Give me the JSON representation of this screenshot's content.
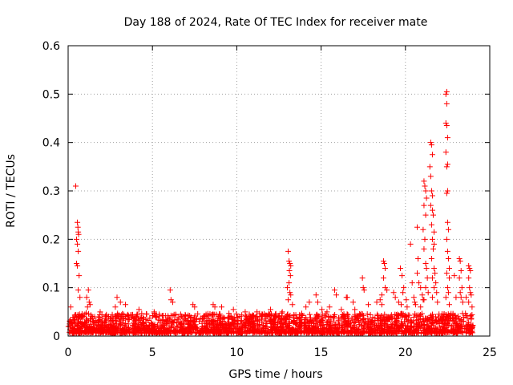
{
  "chart_data": {
    "type": "scatter",
    "title": "Day 188 of 2024, Rate Of TEC Index for receiver mate",
    "xlabel": "GPS time / hours",
    "ylabel": "ROTI / TECUs",
    "xlim": [
      0,
      25
    ],
    "ylim": [
      0,
      0.6
    ],
    "xticks": [
      0,
      5,
      10,
      15,
      20,
      25
    ],
    "xtick_labels": [
      "0",
      "5",
      "10",
      "15",
      "20",
      "25"
    ],
    "yticks": [
      0,
      0.1,
      0.2,
      0.3,
      0.4,
      0.5,
      0.6
    ],
    "ytick_labels": [
      "0",
      "0.1",
      "0.2",
      "0.3",
      "0.4",
      "0.5",
      "0.6"
    ],
    "grid": true,
    "marker": "+",
    "color": "#ff0000",
    "baseline": {
      "x_range": [
        0,
        24
      ],
      "y_range": [
        0.005,
        0.045
      ],
      "n_points": 2400
    },
    "series": [
      {
        "name": "ROTI",
        "points": [
          [
            0.45,
            0.31
          ],
          [
            0.55,
            0.235
          ],
          [
            0.58,
            0.225
          ],
          [
            0.6,
            0.215
          ],
          [
            0.62,
            0.21
          ],
          [
            0.5,
            0.2
          ],
          [
            0.55,
            0.19
          ],
          [
            0.6,
            0.175
          ],
          [
            0.5,
            0.15
          ],
          [
            0.55,
            0.145
          ],
          [
            0.65,
            0.125
          ],
          [
            0.6,
            0.095
          ],
          [
            0.7,
            0.08
          ],
          [
            1.2,
            0.095
          ],
          [
            1.1,
            0.08
          ],
          [
            1.25,
            0.07
          ],
          [
            1.3,
            0.065
          ],
          [
            1.15,
            0.06
          ],
          [
            2.9,
            0.08
          ],
          [
            3.1,
            0.07
          ],
          [
            2.8,
            0.06
          ],
          [
            3.4,
            0.065
          ],
          [
            6.05,
            0.095
          ],
          [
            6.1,
            0.075
          ],
          [
            6.2,
            0.07
          ],
          [
            7.4,
            0.065
          ],
          [
            7.5,
            0.06
          ],
          [
            8.6,
            0.065
          ],
          [
            8.7,
            0.06
          ],
          [
            9.1,
            0.06
          ],
          [
            11.2,
            0.05
          ],
          [
            12.0,
            0.055
          ],
          [
            13.05,
            0.175
          ],
          [
            13.1,
            0.155
          ],
          [
            13.15,
            0.15
          ],
          [
            13.2,
            0.145
          ],
          [
            13.12,
            0.135
          ],
          [
            13.18,
            0.125
          ],
          [
            13.1,
            0.11
          ],
          [
            13.0,
            0.1
          ],
          [
            13.15,
            0.09
          ],
          [
            13.2,
            0.085
          ],
          [
            13.05,
            0.075
          ],
          [
            13.3,
            0.065
          ],
          [
            14.3,
            0.07
          ],
          [
            14.1,
            0.06
          ],
          [
            14.7,
            0.085
          ],
          [
            14.8,
            0.07
          ],
          [
            15.05,
            0.055
          ],
          [
            15.35,
            0.05
          ],
          [
            15.5,
            0.06
          ],
          [
            15.8,
            0.095
          ],
          [
            15.9,
            0.085
          ],
          [
            16.2,
            0.055
          ],
          [
            16.5,
            0.08
          ],
          [
            16.55,
            0.08
          ],
          [
            16.9,
            0.07
          ],
          [
            17.0,
            0.055
          ],
          [
            17.45,
            0.12
          ],
          [
            17.5,
            0.1
          ],
          [
            17.55,
            0.095
          ],
          [
            17.8,
            0.065
          ],
          [
            18.3,
            0.07
          ],
          [
            18.6,
            0.065
          ],
          [
            18.7,
            0.155
          ],
          [
            18.75,
            0.15
          ],
          [
            18.8,
            0.14
          ],
          [
            18.7,
            0.12
          ],
          [
            18.8,
            0.1
          ],
          [
            18.9,
            0.095
          ],
          [
            18.6,
            0.085
          ],
          [
            18.5,
            0.075
          ],
          [
            19.3,
            0.09
          ],
          [
            19.4,
            0.08
          ],
          [
            19.6,
            0.07
          ],
          [
            19.7,
            0.14
          ],
          [
            19.8,
            0.125
          ],
          [
            19.9,
            0.1
          ],
          [
            19.85,
            0.09
          ],
          [
            19.75,
            0.065
          ],
          [
            20.05,
            0.075
          ],
          [
            20.1,
            0.06
          ],
          [
            20.3,
            0.19
          ],
          [
            20.4,
            0.11
          ],
          [
            20.5,
            0.08
          ],
          [
            20.55,
            0.07
          ],
          [
            20.6,
            0.065
          ],
          [
            20.7,
            0.225
          ],
          [
            20.75,
            0.16
          ],
          [
            20.7,
            0.13
          ],
          [
            20.8,
            0.11
          ],
          [
            20.9,
            0.1
          ],
          [
            21.0,
            0.085
          ],
          [
            21.05,
            0.075
          ],
          [
            20.9,
            0.06
          ],
          [
            21.1,
            0.32
          ],
          [
            21.15,
            0.31
          ],
          [
            21.2,
            0.3
          ],
          [
            21.25,
            0.285
          ],
          [
            21.1,
            0.27
          ],
          [
            21.2,
            0.25
          ],
          [
            21.05,
            0.22
          ],
          [
            21.15,
            0.2
          ],
          [
            21.1,
            0.18
          ],
          [
            21.2,
            0.15
          ],
          [
            21.25,
            0.14
          ],
          [
            21.3,
            0.12
          ],
          [
            21.2,
            0.1
          ],
          [
            21.35,
            0.09
          ],
          [
            21.1,
            0.075
          ],
          [
            21.5,
            0.4
          ],
          [
            21.55,
            0.395
          ],
          [
            21.6,
            0.375
          ],
          [
            21.45,
            0.35
          ],
          [
            21.5,
            0.33
          ],
          [
            21.55,
            0.3
          ],
          [
            21.6,
            0.29
          ],
          [
            21.5,
            0.27
          ],
          [
            21.6,
            0.26
          ],
          [
            21.65,
            0.25
          ],
          [
            21.55,
            0.23
          ],
          [
            21.7,
            0.215
          ],
          [
            21.6,
            0.2
          ],
          [
            21.7,
            0.19
          ],
          [
            21.65,
            0.18
          ],
          [
            21.55,
            0.16
          ],
          [
            21.7,
            0.14
          ],
          [
            21.75,
            0.13
          ],
          [
            21.6,
            0.12
          ],
          [
            21.8,
            0.11
          ],
          [
            21.7,
            0.1
          ],
          [
            21.85,
            0.09
          ],
          [
            21.6,
            0.08
          ],
          [
            21.9,
            0.07
          ],
          [
            22.4,
            0.5
          ],
          [
            22.45,
            0.505
          ],
          [
            22.45,
            0.48
          ],
          [
            22.4,
            0.44
          ],
          [
            22.45,
            0.435
          ],
          [
            22.5,
            0.41
          ],
          [
            22.4,
            0.38
          ],
          [
            22.5,
            0.355
          ],
          [
            22.45,
            0.35
          ],
          [
            22.5,
            0.3
          ],
          [
            22.45,
            0.295
          ],
          [
            22.5,
            0.235
          ],
          [
            22.55,
            0.22
          ],
          [
            22.45,
            0.2
          ],
          [
            22.5,
            0.175
          ],
          [
            22.55,
            0.16
          ],
          [
            22.6,
            0.14
          ],
          [
            22.45,
            0.13
          ],
          [
            22.6,
            0.12
          ],
          [
            22.5,
            0.1
          ],
          [
            22.55,
            0.09
          ],
          [
            22.4,
            0.08
          ],
          [
            22.6,
            0.065
          ],
          [
            22.9,
            0.125
          ],
          [
            23.0,
            0.08
          ],
          [
            23.2,
            0.16
          ],
          [
            23.25,
            0.155
          ],
          [
            23.3,
            0.135
          ],
          [
            23.2,
            0.12
          ],
          [
            23.35,
            0.1
          ],
          [
            23.25,
            0.09
          ],
          [
            23.3,
            0.08
          ],
          [
            23.4,
            0.07
          ],
          [
            23.6,
            0.08
          ],
          [
            23.75,
            0.145
          ],
          [
            23.8,
            0.14
          ],
          [
            23.85,
            0.135
          ],
          [
            23.75,
            0.12
          ],
          [
            23.8,
            0.1
          ],
          [
            23.85,
            0.09
          ],
          [
            23.9,
            0.085
          ],
          [
            23.75,
            0.07
          ],
          [
            23.95,
            0.06
          ],
          [
            0.15,
            0.06
          ],
          [
            1.9,
            0.05
          ],
          [
            4.2,
            0.055
          ],
          [
            5.1,
            0.05
          ],
          [
            9.8,
            0.055
          ],
          [
            10.5,
            0.05
          ],
          [
            12.7,
            0.05
          ]
        ]
      }
    ]
  }
}
